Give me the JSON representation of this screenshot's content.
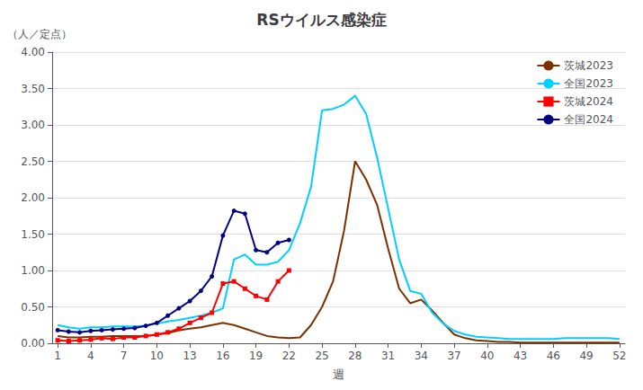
{
  "chart_data": {
    "type": "line",
    "title": "RSウイルス感染症",
    "xlabel": "週",
    "ylabel": "（人／定点）",
    "xlim": [
      0.5,
      52.5
    ],
    "xticks": [
      1,
      4,
      7,
      10,
      13,
      16,
      19,
      22,
      25,
      28,
      31,
      34,
      37,
      40,
      43,
      46,
      49,
      52
    ],
    "ylim": [
      0,
      4.0
    ],
    "yticks": [
      {
        "value": 0,
        "label": "0.00"
      },
      {
        "value": 0.5,
        "label": "0.50"
      },
      {
        "value": 1,
        "label": "1.00"
      },
      {
        "value": 1.5,
        "label": "1.50"
      },
      {
        "value": 2,
        "label": "2.00"
      },
      {
        "value": 2.5,
        "label": "2.50"
      },
      {
        "value": 3,
        "label": "3.00"
      },
      {
        "value": 3.5,
        "label": "3.50"
      },
      {
        "value": 4,
        "label": "4.00"
      }
    ],
    "grid": true,
    "legend": "upper right",
    "background_color": "#FFFFFF",
    "series": [
      {
        "name": "茨城2023",
        "color": "#7B3000",
        "marker": "none",
        "x": [
          1,
          2,
          3,
          4,
          5,
          6,
          7,
          8,
          9,
          10,
          11,
          12,
          13,
          14,
          15,
          16,
          17,
          18,
          19,
          20,
          21,
          22,
          23,
          24,
          25,
          26,
          27,
          28,
          29,
          30,
          31,
          32,
          33,
          34,
          35,
          36,
          37,
          38,
          39,
          40,
          41,
          42,
          43,
          44,
          45,
          46,
          47,
          48,
          49,
          50,
          51,
          52
        ],
        "values": [
          0.1,
          0.08,
          0.08,
          0.09,
          0.09,
          0.1,
          0.1,
          0.1,
          0.1,
          0.12,
          0.14,
          0.18,
          0.2,
          0.22,
          0.25,
          0.28,
          0.25,
          0.2,
          0.15,
          0.1,
          0.08,
          0.07,
          0.08,
          0.25,
          0.5,
          0.85,
          1.55,
          2.5,
          2.25,
          1.9,
          1.3,
          0.75,
          0.55,
          0.6,
          0.45,
          0.28,
          0.12,
          0.07,
          0.04,
          0.03,
          0.02,
          0.02,
          0.01,
          0.01,
          0.01,
          0.01,
          0.01,
          0.01,
          0.01,
          0.01,
          0.01,
          0.01
        ]
      },
      {
        "name": "全国2023",
        "color": "#00CFFF",
        "marker": "none",
        "x": [
          1,
          2,
          3,
          4,
          5,
          6,
          7,
          8,
          9,
          10,
          11,
          12,
          13,
          14,
          15,
          16,
          17,
          18,
          19,
          20,
          21,
          22,
          23,
          24,
          25,
          26,
          27,
          28,
          29,
          30,
          31,
          32,
          33,
          34,
          35,
          36,
          37,
          38,
          39,
          40,
          41,
          42,
          43,
          44,
          45,
          46,
          47,
          48,
          49,
          50,
          51,
          52
        ],
        "values": [
          0.25,
          0.22,
          0.2,
          0.22,
          0.22,
          0.23,
          0.23,
          0.23,
          0.24,
          0.27,
          0.3,
          0.32,
          0.35,
          0.38,
          0.42,
          0.48,
          1.15,
          1.22,
          1.08,
          1.08,
          1.12,
          1.28,
          1.65,
          2.15,
          3.2,
          3.22,
          3.28,
          3.4,
          3.15,
          2.55,
          1.85,
          1.15,
          0.72,
          0.68,
          0.42,
          0.27,
          0.17,
          0.12,
          0.09,
          0.08,
          0.07,
          0.06,
          0.06,
          0.06,
          0.06,
          0.06,
          0.07,
          0.07,
          0.07,
          0.07,
          0.07,
          0.06
        ]
      },
      {
        "name": "茨城2024",
        "color": "#FF0000",
        "marker": "square",
        "x": [
          1,
          2,
          3,
          4,
          5,
          6,
          7,
          8,
          9,
          10,
          11,
          12,
          13,
          14,
          15,
          16,
          17,
          18,
          19,
          20,
          21,
          22
        ],
        "values": [
          0.04,
          0.03,
          0.04,
          0.05,
          0.07,
          0.06,
          0.08,
          0.08,
          0.1,
          0.12,
          0.15,
          0.2,
          0.28,
          0.35,
          0.42,
          0.82,
          0.85,
          0.75,
          0.65,
          0.6,
          0.85,
          1.0
        ]
      },
      {
        "name": "全国2024",
        "color": "#000080",
        "marker": "circle",
        "x": [
          1,
          2,
          3,
          4,
          5,
          6,
          7,
          8,
          9,
          10,
          11,
          12,
          13,
          14,
          15,
          16,
          17,
          18,
          19,
          20,
          21,
          22
        ],
        "values": [
          0.18,
          0.16,
          0.15,
          0.17,
          0.18,
          0.19,
          0.2,
          0.21,
          0.24,
          0.28,
          0.38,
          0.48,
          0.58,
          0.72,
          0.92,
          1.48,
          1.82,
          1.78,
          1.28,
          1.25,
          1.38,
          1.42
        ]
      }
    ]
  }
}
